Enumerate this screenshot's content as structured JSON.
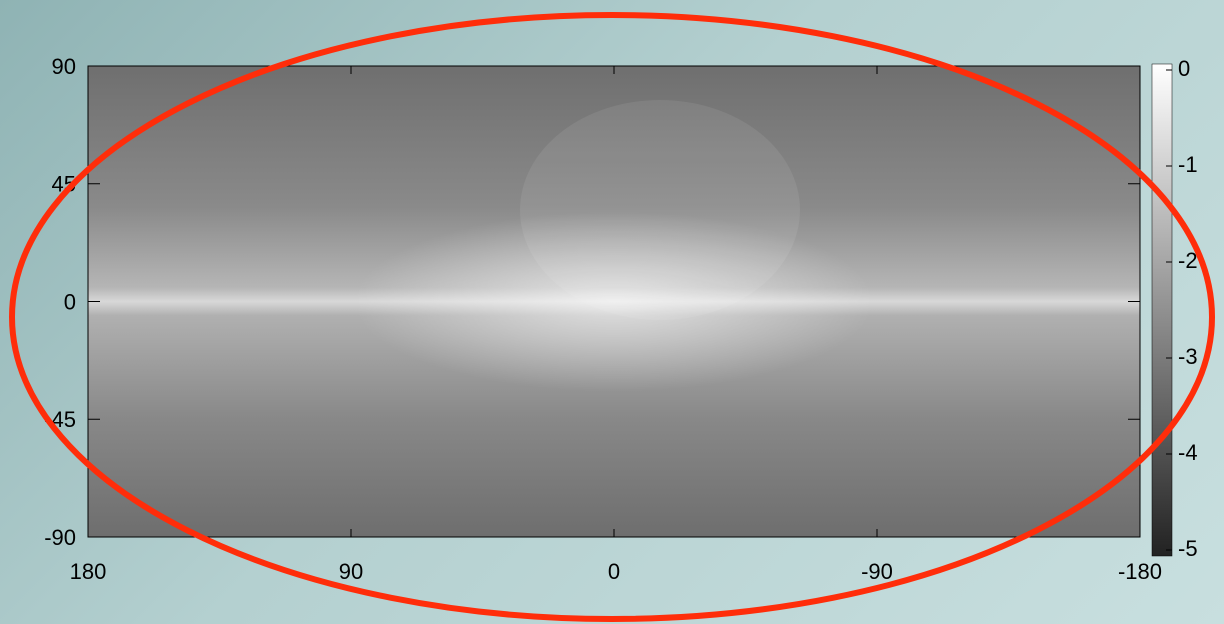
{
  "chart_data": {
    "type": "heatmap",
    "xlim": [
      180,
      -180
    ],
    "xticks": [
      180,
      90,
      0,
      -90,
      -180
    ],
    "ylim": [
      -90,
      90
    ],
    "yticks": [
      90,
      45,
      0,
      -45,
      -90
    ],
    "colorbar": {
      "lim": [
        -5,
        0
      ],
      "ticks": [
        0,
        -1,
        -2,
        -3,
        -4,
        -5
      ]
    }
  }
}
